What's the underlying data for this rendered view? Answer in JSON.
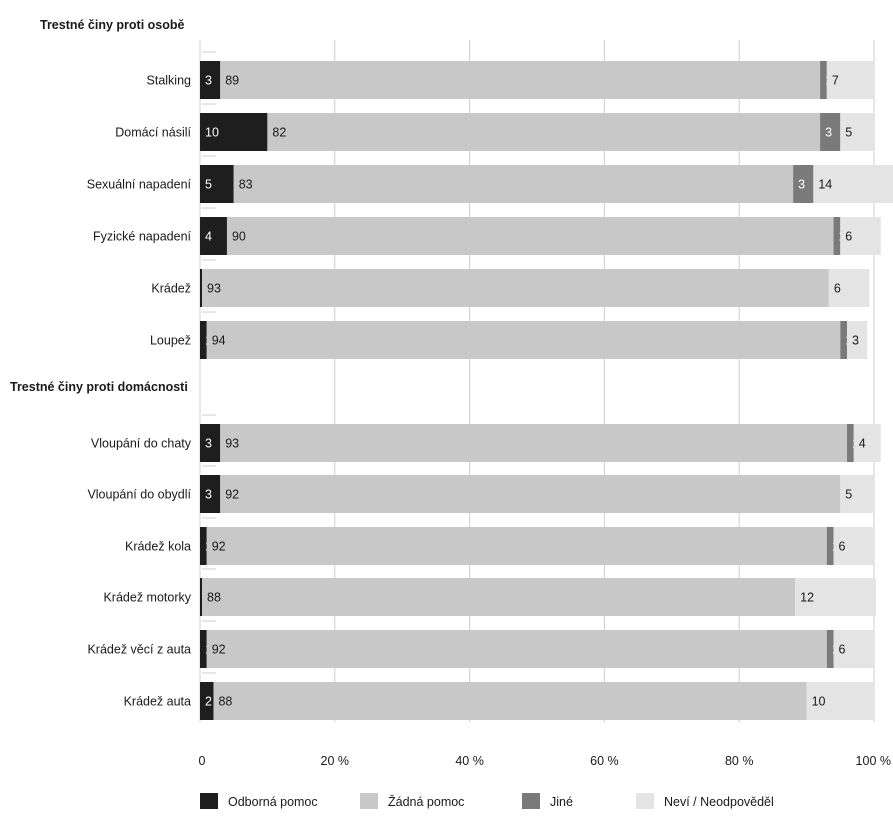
{
  "chart_data": {
    "type": "bar",
    "orientation": "horizontal",
    "stacked": true,
    "groups": [
      {
        "title": "Trestné činy proti osobě",
        "start": 0,
        "end": 5
      },
      {
        "title": "Trestné činy proti domácnosti",
        "start": 6,
        "end": 11
      }
    ],
    "categories": [
      "Stalking",
      "Domácí násilí",
      "Sexuální napadení",
      "Fyzické napadení",
      "Krádež",
      "Loupež",
      "Vloupání do chaty",
      "Vloupání do obydlí",
      "Krádež kola",
      "Krádež motorky",
      "Krádež věcí z auta",
      "Krádež auta"
    ],
    "series": [
      {
        "name": "Odborná pomoc",
        "color": "#1e1e1e",
        "label_color": "#ffffff",
        "values": [
          3,
          10,
          5,
          4,
          0.3,
          1,
          3,
          3,
          1,
          0.3,
          1,
          2
        ],
        "labels": [
          "3",
          "10",
          "5",
          "4",
          "",
          "1",
          "3",
          "3",
          "1",
          "",
          "1",
          "2"
        ]
      },
      {
        "name": "Žádná pomoc",
        "color": "#c8c8c8",
        "label_color": "#1a1a1a",
        "values": [
          89,
          82,
          83,
          90,
          93,
          94,
          93,
          92,
          92,
          88,
          92,
          88
        ],
        "labels": [
          "89",
          "82",
          "83",
          "90",
          "93",
          "94",
          "93",
          "92",
          "92",
          "88",
          "92",
          "88"
        ]
      },
      {
        "name": "Jiné",
        "color": "#7a7a7a",
        "label_color": "#ffffff",
        "values": [
          1,
          3,
          3,
          1,
          0,
          1,
          1,
          0,
          1,
          0,
          1,
          0
        ],
        "labels": [
          "1",
          "3",
          "3",
          "1",
          "",
          "1",
          "1",
          "",
          "1",
          "",
          "1",
          ""
        ]
      },
      {
        "name": "Neví / Neodpověděl",
        "color": "#e4e4e4",
        "label_color": "#1a1a1a",
        "values": [
          7,
          5,
          14,
          6,
          6,
          3,
          4,
          5,
          6,
          12,
          6,
          10
        ],
        "labels": [
          "7",
          "5",
          "14",
          "6",
          "6",
          "3",
          "4",
          "5",
          "6",
          "12",
          "6",
          "10"
        ]
      }
    ],
    "xlim": [
      0,
      100
    ],
    "xticks": [
      "0",
      "20 %",
      "40 %",
      "60 %",
      "80 %",
      "100 %"
    ],
    "grid": true,
    "legend_position": "bottom"
  }
}
